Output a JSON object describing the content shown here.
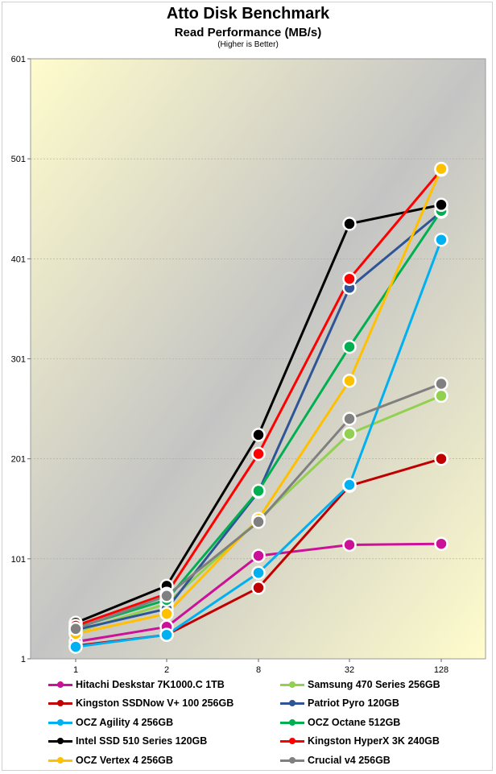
{
  "chart_data": {
    "type": "line",
    "title": "Atto Disk Benchmark",
    "subtitle": "Read Performance (MB/s)",
    "note": "(Higher is Better)",
    "categories": [
      "1",
      "2",
      "8",
      "32",
      "128"
    ],
    "ylim": [
      1,
      601
    ],
    "yticks": [
      "1",
      "101",
      "201",
      "301",
      "401",
      "501",
      "601"
    ],
    "grid": true,
    "legend_position": "bottom",
    "series": [
      {
        "name": "Hitachi Deskstar 7K1000.C 1TB",
        "color": "#cc1199",
        "values": [
          18,
          33,
          104,
          115,
          116
        ]
      },
      {
        "name": "Samsung 470 Series 256GB",
        "color": "#92d050",
        "values": [
          28,
          56,
          140,
          226,
          264
        ]
      },
      {
        "name": "Kingston SSDNow V+ 100 256GB",
        "color": "#c00000",
        "values": [
          14,
          25,
          72,
          174,
          201
        ]
      },
      {
        "name": "Patriot Pyro 120GB",
        "color": "#2f5597",
        "values": [
          30,
          51,
          168,
          372,
          448
        ]
      },
      {
        "name": "OCZ Agility 4 256GB",
        "color": "#00b0f0",
        "values": [
          13,
          25,
          87,
          175,
          420
        ]
      },
      {
        "name": "OCZ Octane 512GB",
        "color": "#00b050",
        "values": [
          32,
          60,
          169,
          313,
          449
        ]
      },
      {
        "name": "Intel SSD 510 Series 120GB",
        "color": "#000000",
        "values": [
          37,
          74,
          225,
          436,
          455
        ]
      },
      {
        "name": "Kingston HyperX 3K 240GB",
        "color": "#ff0000",
        "values": [
          34,
          66,
          206,
          381,
          490
        ]
      },
      {
        "name": "OCZ Vertex 4 256GB",
        "color": "#ffc000",
        "values": [
          26,
          46,
          141,
          279,
          491
        ]
      },
      {
        "name": "Crucial v4 256GB",
        "color": "#808080",
        "values": [
          31,
          64,
          138,
          241,
          276
        ]
      }
    ]
  }
}
